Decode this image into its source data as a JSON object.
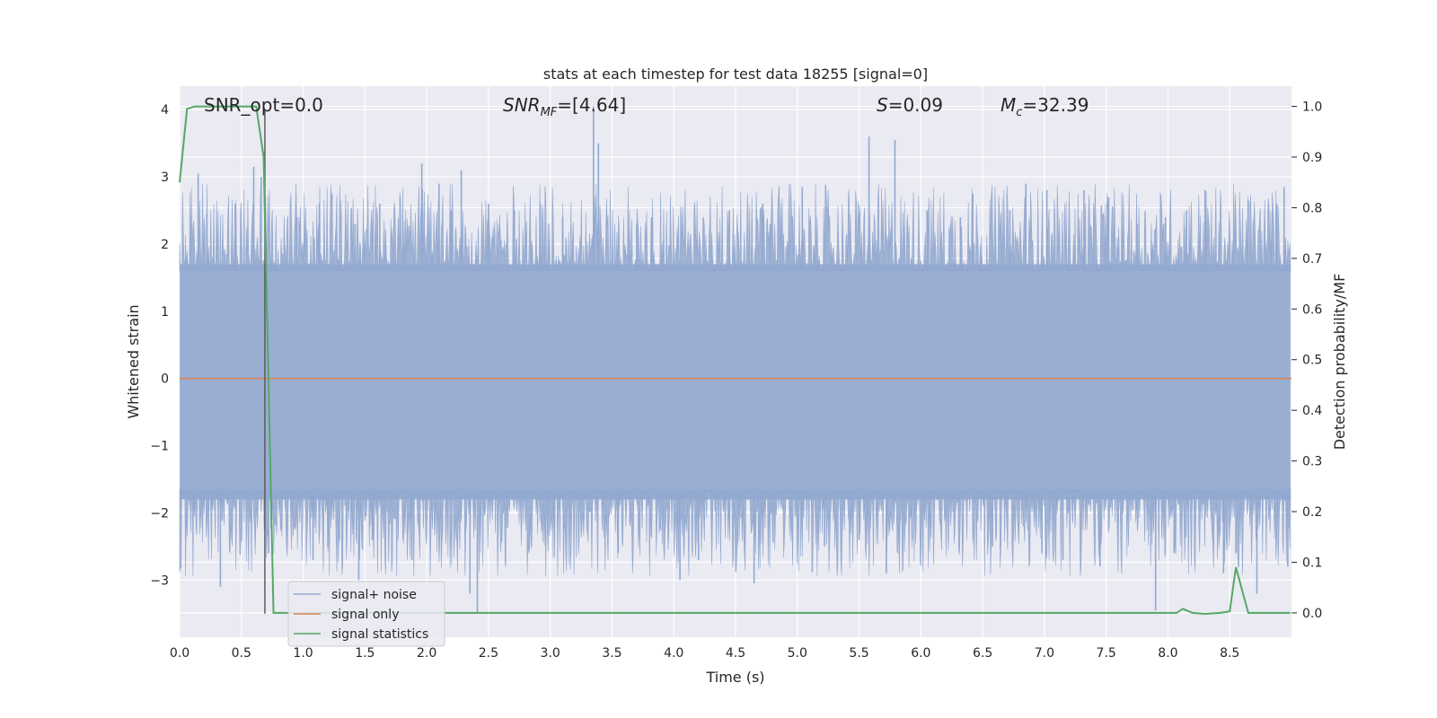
{
  "chart_data": {
    "type": "line",
    "title": "stats at each timestep for test data 18255 [signal=0]",
    "xlabel": "Time (s)",
    "ylabel": "Whitened strain",
    "y2label": "Detection probability/MF",
    "xlim": [
      0,
      9.0
    ],
    "ylim": [
      -3.85,
      4.35
    ],
    "y2lim": [
      -0.048,
      1.04
    ],
    "x_ticks": [
      "0.0",
      "0.5",
      "1.0",
      "1.5",
      "2.0",
      "2.5",
      "3.0",
      "3.5",
      "4.0",
      "4.5",
      "5.0",
      "5.5",
      "6.0",
      "6.5",
      "7.0",
      "7.5",
      "8.0",
      "8.5"
    ],
    "y_ticks": [
      "4",
      "3",
      "2",
      "1",
      "0",
      "−1",
      "−2",
      "−3"
    ],
    "y2_ticks": [
      "1.0",
      "0.9",
      "0.8",
      "0.7",
      "0.6",
      "0.5",
      "0.4",
      "0.3",
      "0.2",
      "0.1",
      "0.0"
    ],
    "grid": true,
    "legend_position": "lower-left",
    "annotations": {
      "snr_opt": "SNR_opt=0.0",
      "snr_mf_sym": "SNR",
      "snr_mf_sub": "MF",
      "snr_mf_val": "=[4.64]",
      "s_sym": "S",
      "s_val": "=0.09",
      "mc_sym": "M",
      "mc_sub": "c",
      "mc_val": "=32.39"
    },
    "series": [
      {
        "name": "signal+ noise",
        "color": "#92a8cf",
        "note_range": [
          -3.5,
          4.0
        ],
        "spikes": [
          [
            0.06,
            1.8
          ],
          [
            0.15,
            3.05
          ],
          [
            0.22,
            2.45
          ],
          [
            0.33,
            -3.1
          ],
          [
            0.45,
            2.6
          ],
          [
            0.6,
            3.15
          ],
          [
            0.66,
            3.0
          ],
          [
            0.72,
            -2.6
          ],
          [
            0.95,
            2.4
          ],
          [
            1.08,
            -2.7
          ],
          [
            1.13,
            2.6
          ],
          [
            1.2,
            -2.5
          ],
          [
            1.42,
            2.3
          ],
          [
            1.45,
            -3.0
          ],
          [
            1.56,
            -2.4
          ],
          [
            1.62,
            2.6
          ],
          [
            1.88,
            -2.7
          ],
          [
            1.96,
            3.2
          ],
          [
            2.1,
            2.9
          ],
          [
            2.2,
            2.5
          ],
          [
            2.28,
            3.1
          ],
          [
            2.35,
            -3.2
          ],
          [
            2.41,
            -3.5
          ],
          [
            2.5,
            2.6
          ],
          [
            2.71,
            2.5
          ],
          [
            2.85,
            2.0
          ],
          [
            2.92,
            2.6
          ],
          [
            3.1,
            2.4
          ],
          [
            3.35,
            4.05
          ],
          [
            3.39,
            3.5
          ],
          [
            3.55,
            -2.6
          ],
          [
            3.7,
            2.3
          ],
          [
            3.82,
            2.4
          ],
          [
            4.05,
            -3.0
          ],
          [
            4.2,
            -2.7
          ],
          [
            4.45,
            2.5
          ],
          [
            4.65,
            -3.05
          ],
          [
            4.72,
            2.6
          ],
          [
            4.78,
            2.3
          ],
          [
            5.04,
            2.85
          ],
          [
            5.22,
            -2.5
          ],
          [
            5.5,
            -2.4
          ],
          [
            5.58,
            3.6
          ],
          [
            5.72,
            -2.9
          ],
          [
            5.79,
            3.55
          ],
          [
            5.93,
            -2.4
          ],
          [
            6.05,
            2.5
          ],
          [
            6.32,
            2.4
          ],
          [
            6.42,
            2.75
          ],
          [
            6.58,
            -2.5
          ],
          [
            6.72,
            2.5
          ],
          [
            6.85,
            2.9
          ],
          [
            6.98,
            -2.6
          ],
          [
            7.02,
            2.8
          ],
          [
            7.15,
            -2.7
          ],
          [
            7.32,
            2.8
          ],
          [
            7.45,
            -2.8
          ],
          [
            7.52,
            2.7
          ],
          [
            7.75,
            2.3
          ],
          [
            7.9,
            -3.45
          ],
          [
            7.98,
            2.4
          ],
          [
            8.05,
            -2.6
          ],
          [
            8.15,
            2.5
          ],
          [
            8.3,
            2.8
          ],
          [
            8.45,
            -2.9
          ],
          [
            8.55,
            -2.6
          ],
          [
            8.65,
            2.65
          ],
          [
            8.72,
            -3.2
          ],
          [
            8.88,
            2.6
          ],
          [
            8.94,
            2.85
          ],
          [
            8.97,
            -2.8
          ]
        ]
      },
      {
        "name": "signal only",
        "color": "#dd8452",
        "points": [
          [
            0,
            0
          ],
          [
            9.0,
            0
          ]
        ]
      },
      {
        "name": "signal statistics",
        "color": "#55a868",
        "points": [
          [
            0.0,
            0.85
          ],
          [
            0.06,
            0.995
          ],
          [
            0.12,
            1.0
          ],
          [
            0.4,
            1.0
          ],
          [
            0.55,
            1.0
          ],
          [
            0.62,
            1.0
          ],
          [
            0.68,
            0.9
          ],
          [
            0.76,
            0.0
          ],
          [
            1.0,
            0.0
          ],
          [
            4.0,
            0.0
          ],
          [
            7.0,
            0.0
          ],
          [
            8.0,
            0.0
          ],
          [
            8.07,
            0.0
          ],
          [
            8.12,
            0.008
          ],
          [
            8.2,
            0.0
          ],
          [
            8.3,
            -0.002
          ],
          [
            8.42,
            0.0
          ],
          [
            8.5,
            0.003
          ],
          [
            8.55,
            0.09
          ],
          [
            8.6,
            0.045
          ],
          [
            8.65,
            0.0
          ],
          [
            8.8,
            0.0
          ],
          [
            8.99,
            0.0
          ]
        ]
      }
    ],
    "marker_x": 0.69,
    "marker_y_range": [
      -3.5,
      4.0
    ]
  }
}
